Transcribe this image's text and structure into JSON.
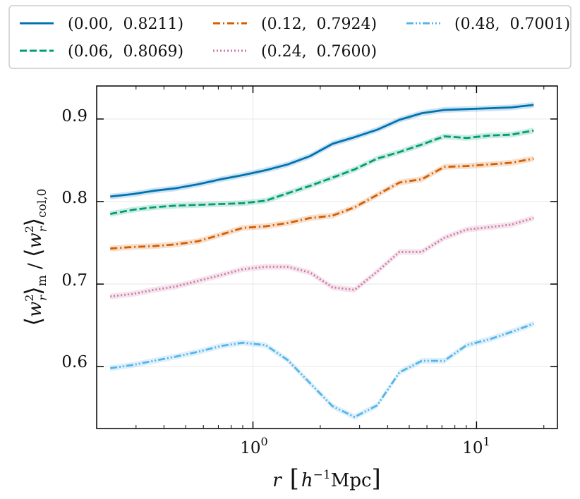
{
  "chart_data": {
    "type": "line",
    "title": "",
    "xscale": "log",
    "xlim": [
      0.2,
      23
    ],
    "ylim": [
      0.525,
      0.94
    ],
    "xlabel": {
      "var": "r",
      "unit_open": "[",
      "unit_h": "h",
      "unit_exp": "−1",
      "unit_mpc": "Mpc",
      "unit_close": "]"
    },
    "ylabel": {
      "part1_l": "⟨",
      "part1_w": "w",
      "part1_sup": "2",
      "part1_sub": "r",
      "part1_r": "⟩",
      "part1_label": "m",
      "sep": " / ",
      "part2_l": "⟨",
      "part2_w": "w",
      "part2_sup": "2",
      "part2_sub": "r",
      "part2_r": "⟩",
      "part2_label": "col,0"
    },
    "x_ticks": [
      {
        "value": 1,
        "base": "10",
        "exp": "0"
      },
      {
        "value": 10,
        "base": "10",
        "exp": "1"
      }
    ],
    "y_ticks": [
      {
        "value": 0.6,
        "label": "0.6"
      },
      {
        "value": 0.7,
        "label": "0.7"
      },
      {
        "value": 0.8,
        "label": "0.8"
      },
      {
        "value": 0.9,
        "label": "0.9"
      }
    ],
    "x": [
      0.23,
      0.29,
      0.36,
      0.45,
      0.57,
      0.72,
      0.9,
      1.14,
      1.43,
      1.8,
      2.27,
      2.85,
      3.59,
      4.52,
      5.69,
      7.17,
      9.03,
      11.4,
      14.3,
      18.0
    ],
    "legend": {
      "position": "top",
      "columns": 3
    },
    "series": [
      {
        "name": "(0.00,  0.8211)",
        "color": "#0072b2",
        "dash": "solid",
        "values": [
          0.806,
          0.809,
          0.813,
          0.816,
          0.821,
          0.827,
          0.832,
          0.838,
          0.845,
          0.855,
          0.87,
          0.878,
          0.887,
          0.899,
          0.907,
          0.911,
          0.912,
          0.913,
          0.914,
          0.917
        ]
      },
      {
        "name": "(0.06,  0.8069)",
        "color": "#009e73",
        "dash": "dashed",
        "values": [
          0.785,
          0.79,
          0.793,
          0.795,
          0.796,
          0.797,
          0.798,
          0.801,
          0.81,
          0.819,
          0.829,
          0.839,
          0.852,
          0.86,
          0.869,
          0.879,
          0.877,
          0.88,
          0.881,
          0.886
        ]
      },
      {
        "name": "(0.12,  0.7924)",
        "color": "#d55e00",
        "dash": "dashdot",
        "values": [
          0.743,
          0.745,
          0.746,
          0.748,
          0.752,
          0.76,
          0.768,
          0.77,
          0.774,
          0.78,
          0.783,
          0.793,
          0.808,
          0.823,
          0.827,
          0.842,
          0.843,
          0.845,
          0.847,
          0.852
        ]
      },
      {
        "name": "(0.24,  0.7600)",
        "color": "#cc79a7",
        "dash": "dotted",
        "values": [
          0.685,
          0.688,
          0.693,
          0.697,
          0.704,
          0.711,
          0.718,
          0.721,
          0.721,
          0.714,
          0.696,
          0.693,
          0.715,
          0.739,
          0.739,
          0.756,
          0.766,
          0.769,
          0.772,
          0.78
        ]
      },
      {
        "name": "(0.48,  0.7001)",
        "color": "#56b4e9",
        "dash": "dashdotdot",
        "values": [
          0.598,
          0.602,
          0.607,
          0.612,
          0.618,
          0.625,
          0.629,
          0.626,
          0.608,
          0.58,
          0.552,
          0.539,
          0.553,
          0.593,
          0.607,
          0.607,
          0.626,
          0.633,
          0.642,
          0.652
        ]
      }
    ]
  }
}
